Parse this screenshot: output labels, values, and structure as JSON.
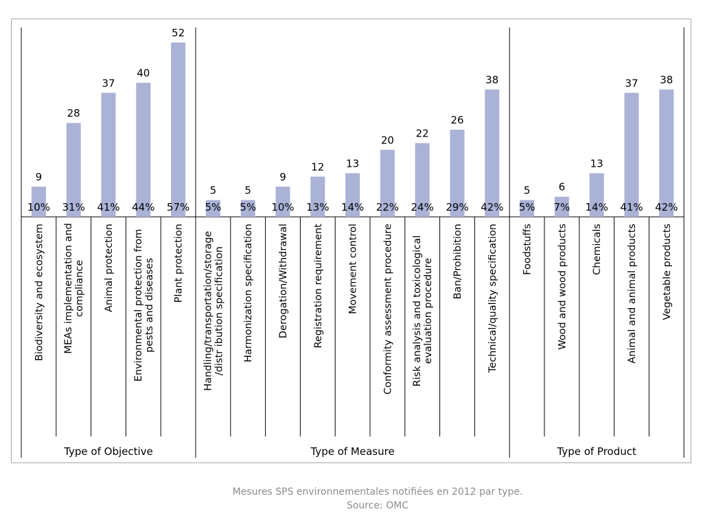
{
  "chart_data": {
    "type": "bar",
    "groups": [
      {
        "name": "Type of Objective",
        "categories": [
          "Biodiversity and ecosystem",
          "MEAs implementation and compliance",
          "Animal protection",
          "Environmental protection from pests and diseases",
          "Plant protection"
        ],
        "values": [
          9,
          28,
          37,
          40,
          52
        ],
        "percent_labels": [
          "10%",
          "31%",
          "41%",
          "44%",
          "57%"
        ]
      },
      {
        "name": "Type of Measure",
        "categories": [
          "Handling/transportation/storage/distr ibution specification",
          "Harmonization specification",
          "Derogation/Withdrawal",
          "Registration requirement",
          "Movement control",
          "Conformity assessment procedure",
          "Risk analysis and toxicological evaluation procedure",
          "Ban/Prohibition",
          "Technical/quality specification"
        ],
        "values": [
          5,
          5,
          9,
          12,
          13,
          20,
          22,
          26,
          38
        ],
        "percent_labels": [
          "5%",
          "5%",
          "10%",
          "13%",
          "14%",
          "22%",
          "24%",
          "29%",
          "42%"
        ]
      },
      {
        "name": "Type of Product",
        "categories": [
          "Foodstuffs",
          "Wood and wood products",
          "Chemicals",
          "Animal and animal products",
          "Vegetable products"
        ],
        "values": [
          5,
          6,
          13,
          37,
          38
        ],
        "percent_labels": [
          "5%",
          "7%",
          "14%",
          "41%",
          "42%"
        ]
      }
    ],
    "ylim": [
      0,
      52
    ],
    "bar_color": "#aab2d6",
    "grid": false
  },
  "caption": {
    "line1": "Mesures SPS environnementales notifiées en 2012 par type.",
    "line2": "Source: OMC"
  }
}
